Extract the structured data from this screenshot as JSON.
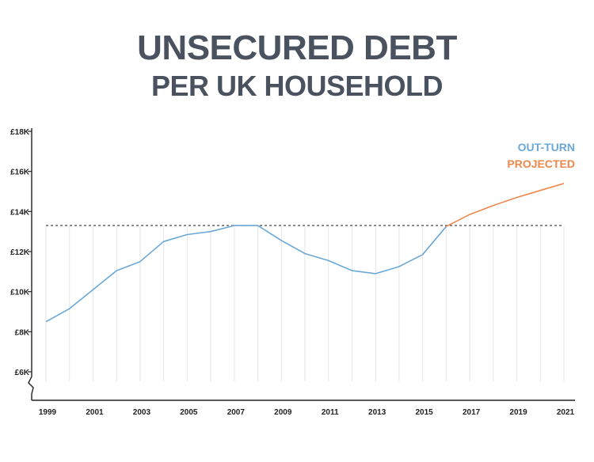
{
  "title": {
    "line1": "UNSECURED DEBT",
    "line2": "PER UK HOUSEHOLD"
  },
  "colors": {
    "title": "#4a5260",
    "outturn": "#6aa8d8",
    "projected": "#f0874a",
    "reference": "#333333",
    "grid": "#e6e6e6",
    "axis": "#222222"
  },
  "chart_data": {
    "type": "line",
    "title": "UNSECURED DEBT PER UK HOUSEHOLD",
    "xlabel": "",
    "ylabel": "",
    "xlim": [
      1999,
      2021
    ],
    "ylim": [
      6000,
      18000
    ],
    "y_ticks": [
      {
        "value": 6000,
        "label": "£6K"
      },
      {
        "value": 8000,
        "label": "£8K"
      },
      {
        "value": 10000,
        "label": "£10K"
      },
      {
        "value": 12000,
        "label": "£12K"
      },
      {
        "value": 14000,
        "label": "£14K"
      },
      {
        "value": 16000,
        "label": "£16K"
      },
      {
        "value": 18000,
        "label": "£18K"
      }
    ],
    "x_ticks": [
      "1999",
      "2001",
      "2003",
      "2005",
      "2007",
      "2009",
      "2011",
      "2013",
      "2015",
      "2017",
      "2019",
      "2021"
    ],
    "grid": "vertical",
    "legend_placement": "top-right",
    "reference_line": {
      "y": 13300,
      "style": "dashed"
    },
    "series": [
      {
        "name": "OUT-TURN",
        "color": "#6aa8d8",
        "x": [
          1999,
          2000,
          2001,
          2002,
          2003,
          2004,
          2005,
          2006,
          2007,
          2008,
          2009,
          2010,
          2011,
          2012,
          2013,
          2014,
          2015,
          2016
        ],
        "y": [
          8500,
          9150,
          10100,
          11050,
          11500,
          12500,
          12850,
          13000,
          13300,
          13300,
          12550,
          11900,
          11550,
          11050,
          10900,
          11250,
          11850,
          13250
        ]
      },
      {
        "name": "PROJECTED",
        "color": "#f0874a",
        "x": [
          2016,
          2017,
          2018,
          2019,
          2020,
          2021
        ],
        "y": [
          13250,
          13850,
          14300,
          14700,
          15050,
          15400
        ]
      }
    ]
  }
}
